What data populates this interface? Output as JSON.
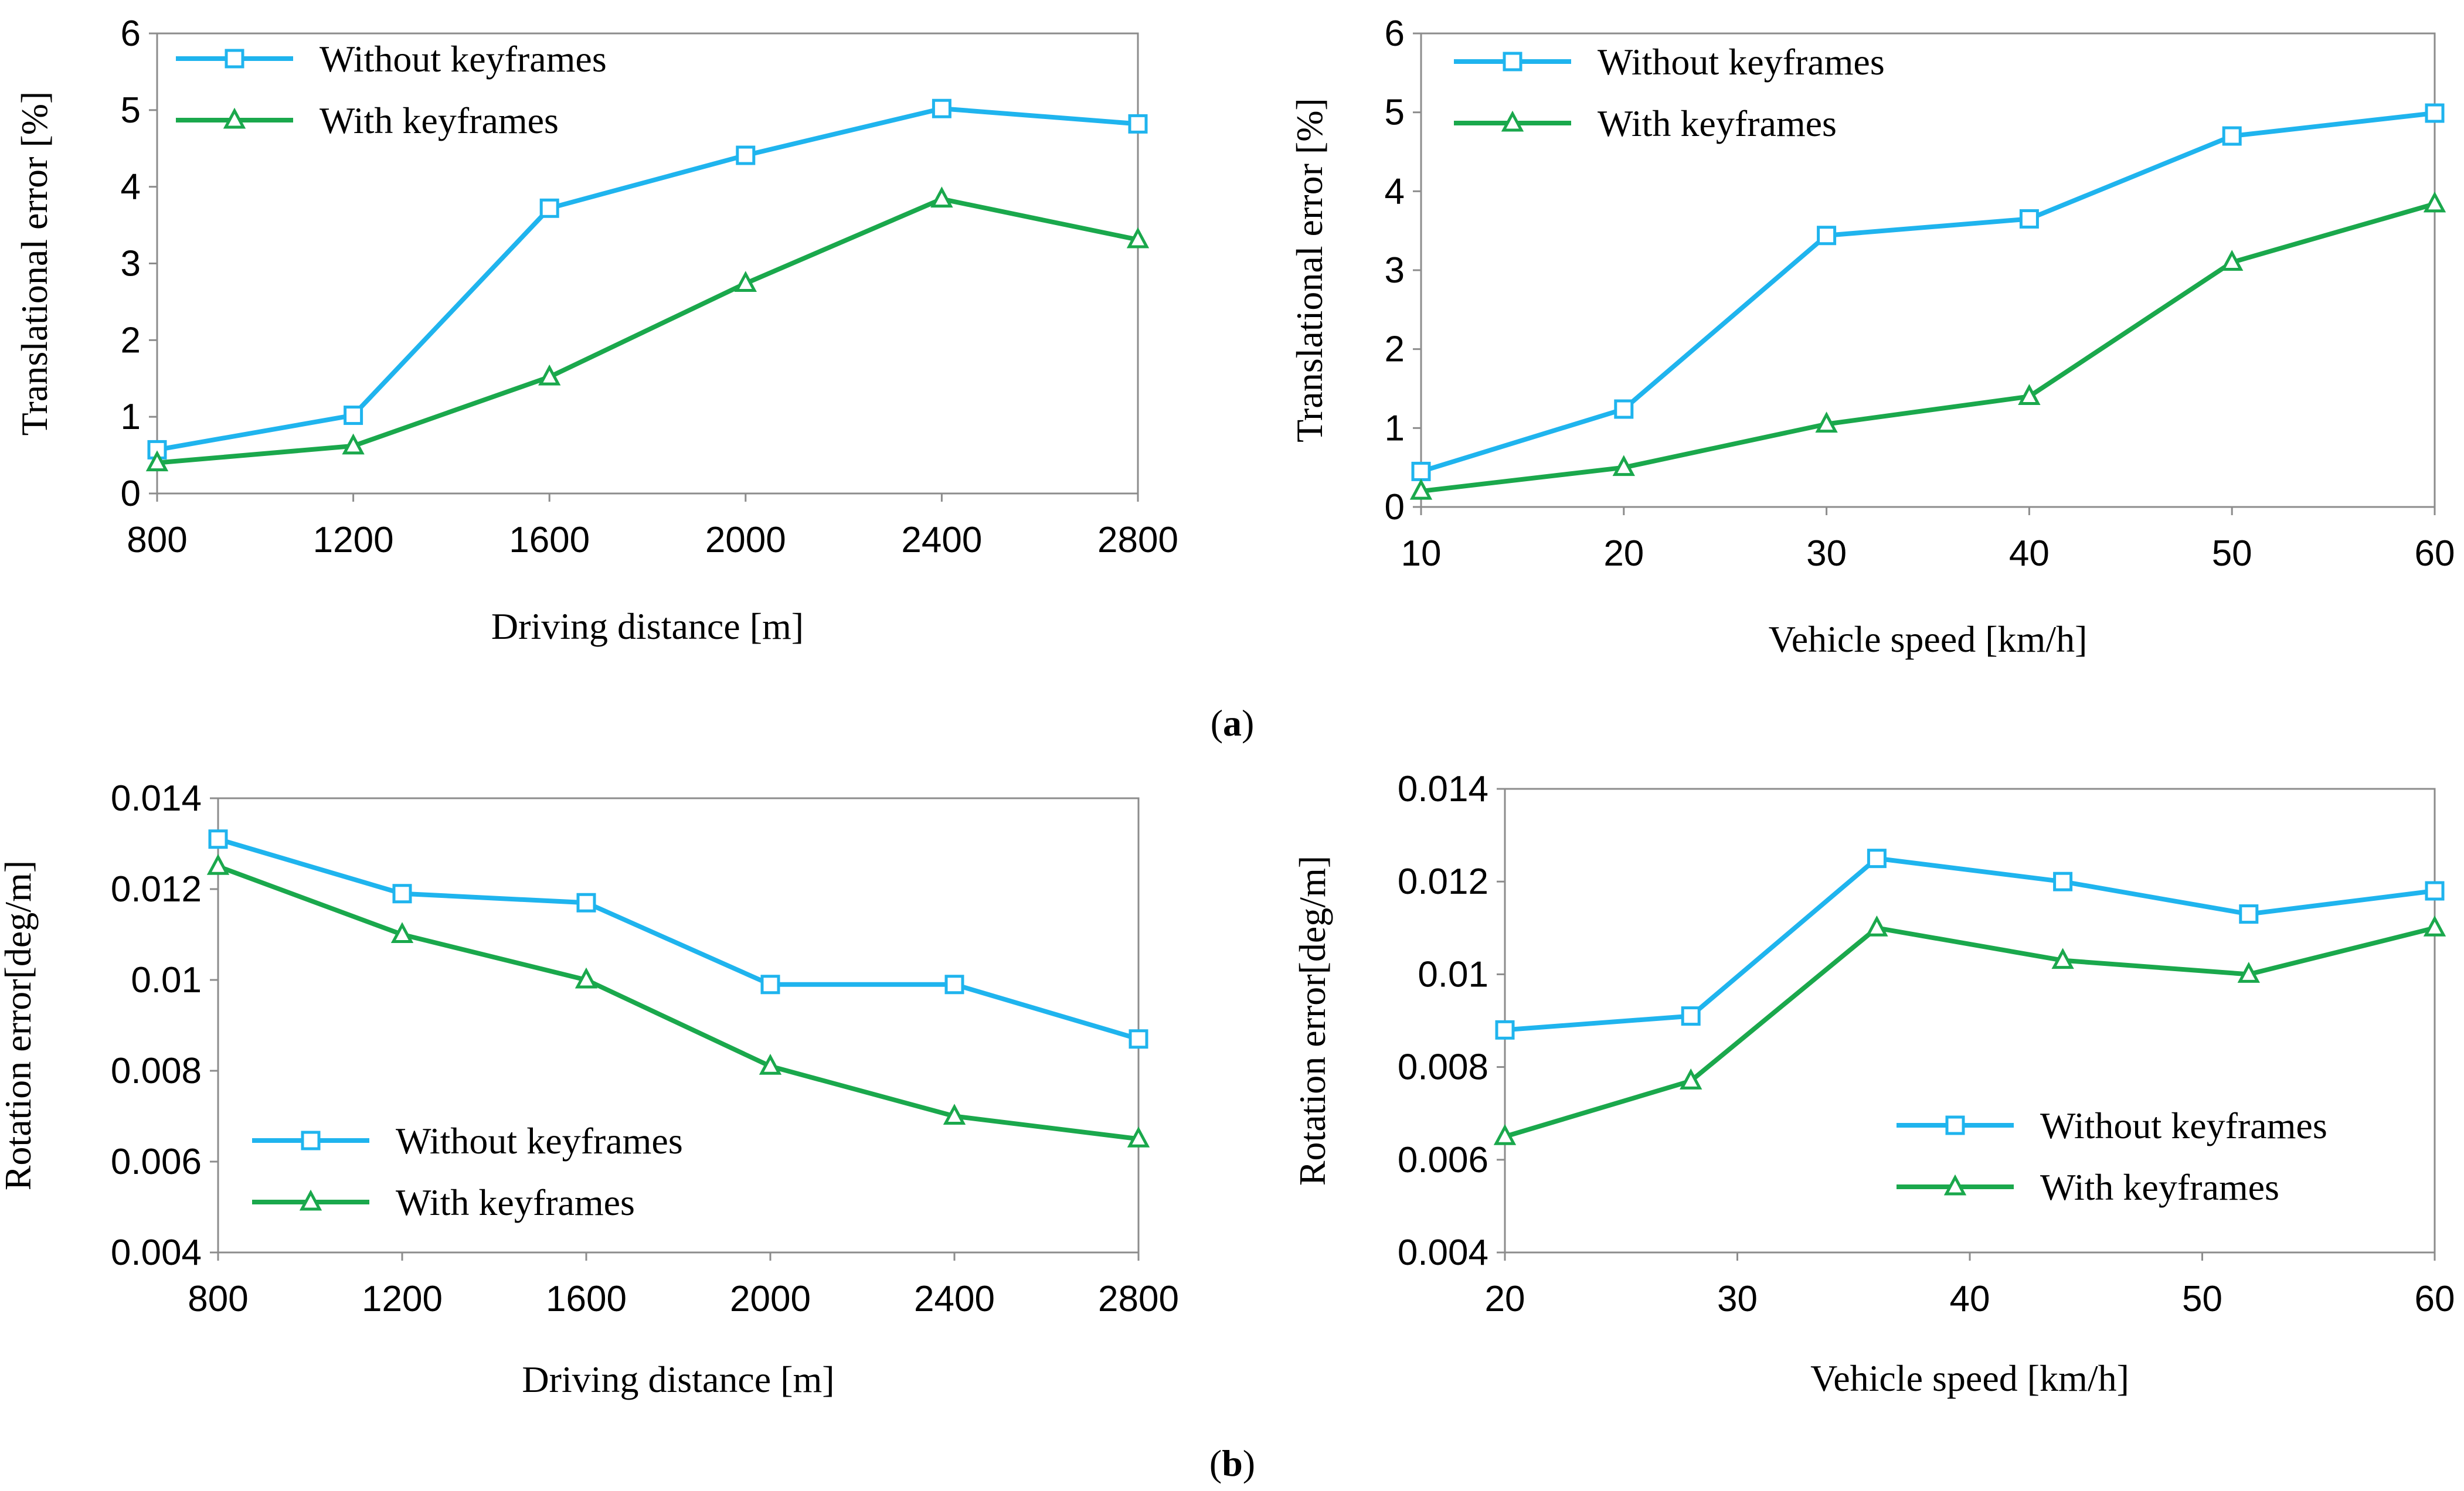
{
  "figure": {
    "caption_a": "(a)",
    "caption_b": "(b)",
    "caption_letters": [
      "a",
      "b"
    ]
  },
  "series_styles": {
    "without": {
      "color": "#1fb4ee",
      "marker": "square-marker"
    },
    "with": {
      "color": "#1aa84c",
      "marker": "triangle-marker"
    }
  },
  "chart_data": [
    {
      "id": "a-left",
      "type": "line",
      "title": "",
      "xlabel": "Driving distance [m]",
      "ylabel": "Translational error [%]",
      "x": [
        800,
        1200,
        1600,
        2000,
        2400,
        2800
      ],
      "xticks": [
        "800",
        "1200",
        "1600",
        "2000",
        "2400",
        "2800"
      ],
      "yticks": [
        "0",
        "1",
        "2",
        "3",
        "4",
        "5",
        "6"
      ],
      "xlim": [
        800,
        2800
      ],
      "ylim": [
        0,
        6
      ],
      "legend_position": "top-left",
      "series": [
        {
          "name": "Without keyframes",
          "style": "without",
          "values": [
            0.57,
            1.02,
            3.72,
            4.41,
            5.02,
            4.82
          ]
        },
        {
          "name": "With keyframes",
          "style": "with",
          "values": [
            0.4,
            0.62,
            1.52,
            2.74,
            3.84,
            3.31
          ]
        }
      ]
    },
    {
      "id": "a-right",
      "type": "line",
      "title": "",
      "xlabel": "Vehicle speed [km/h]",
      "ylabel": "Translational error [%]",
      "x": [
        10,
        20,
        30,
        40,
        50,
        60
      ],
      "xticks": [
        "10",
        "20",
        "30",
        "40",
        "50",
        "60"
      ],
      "yticks": [
        "0",
        "1",
        "2",
        "3",
        "4",
        "5",
        "6"
      ],
      "xlim": [
        10,
        60
      ],
      "ylim": [
        0,
        6
      ],
      "legend_position": "top-left",
      "series": [
        {
          "name": "Without keyframes",
          "style": "without",
          "values": [
            0.45,
            1.24,
            3.44,
            3.65,
            4.7,
            4.99
          ]
        },
        {
          "name": "With keyframes",
          "style": "with",
          "values": [
            0.2,
            0.5,
            1.05,
            1.4,
            3.1,
            3.84
          ]
        }
      ]
    },
    {
      "id": "b-left",
      "type": "line",
      "title": "",
      "xlabel": "Driving distance [m]",
      "ylabel": "Rotation error[deg/m]",
      "x": [
        800,
        1200,
        1600,
        2000,
        2400,
        2800
      ],
      "xticks": [
        "800",
        "1200",
        "1600",
        "2000",
        "2400",
        "2800"
      ],
      "yticks": [
        "0.004",
        "0.006",
        "0.008",
        "0.01",
        "0.012",
        "0.014"
      ],
      "xlim": [
        800,
        2800
      ],
      "ylim": [
        0.004,
        0.014
      ],
      "legend_position": "bottom-left",
      "series": [
        {
          "name": "Without keyframes",
          "style": "without",
          "values": [
            0.0131,
            0.0119,
            0.0117,
            0.0099,
            0.0099,
            0.0087
          ]
        },
        {
          "name": "With keyframes",
          "style": "with",
          "values": [
            0.0125,
            0.011,
            0.01,
            0.0081,
            0.007,
            0.0065
          ]
        }
      ]
    },
    {
      "id": "b-right",
      "type": "line",
      "title": "",
      "xlabel": "Vehicle speed [km/h]",
      "ylabel": "Rotation error[deg/m]",
      "x": [
        20,
        28,
        36,
        44,
        52,
        60
      ],
      "xticks": [
        "20",
        "30",
        "40",
        "50",
        "60"
      ],
      "yticks": [
        "0.004",
        "0.006",
        "0.008",
        "0.01",
        "0.012",
        "0.014"
      ],
      "xlim": [
        20,
        60
      ],
      "ylim": [
        0.004,
        0.014
      ],
      "legend_position": "bottom-right",
      "series": [
        {
          "name": "Without keyframes",
          "style": "without",
          "values": [
            0.0088,
            0.0091,
            0.0125,
            0.012,
            0.0113,
            0.0118
          ]
        },
        {
          "name": "With keyframes",
          "style": "with",
          "values": [
            0.0065,
            0.0077,
            0.011,
            0.0103,
            0.01,
            0.011
          ]
        }
      ]
    }
  ]
}
